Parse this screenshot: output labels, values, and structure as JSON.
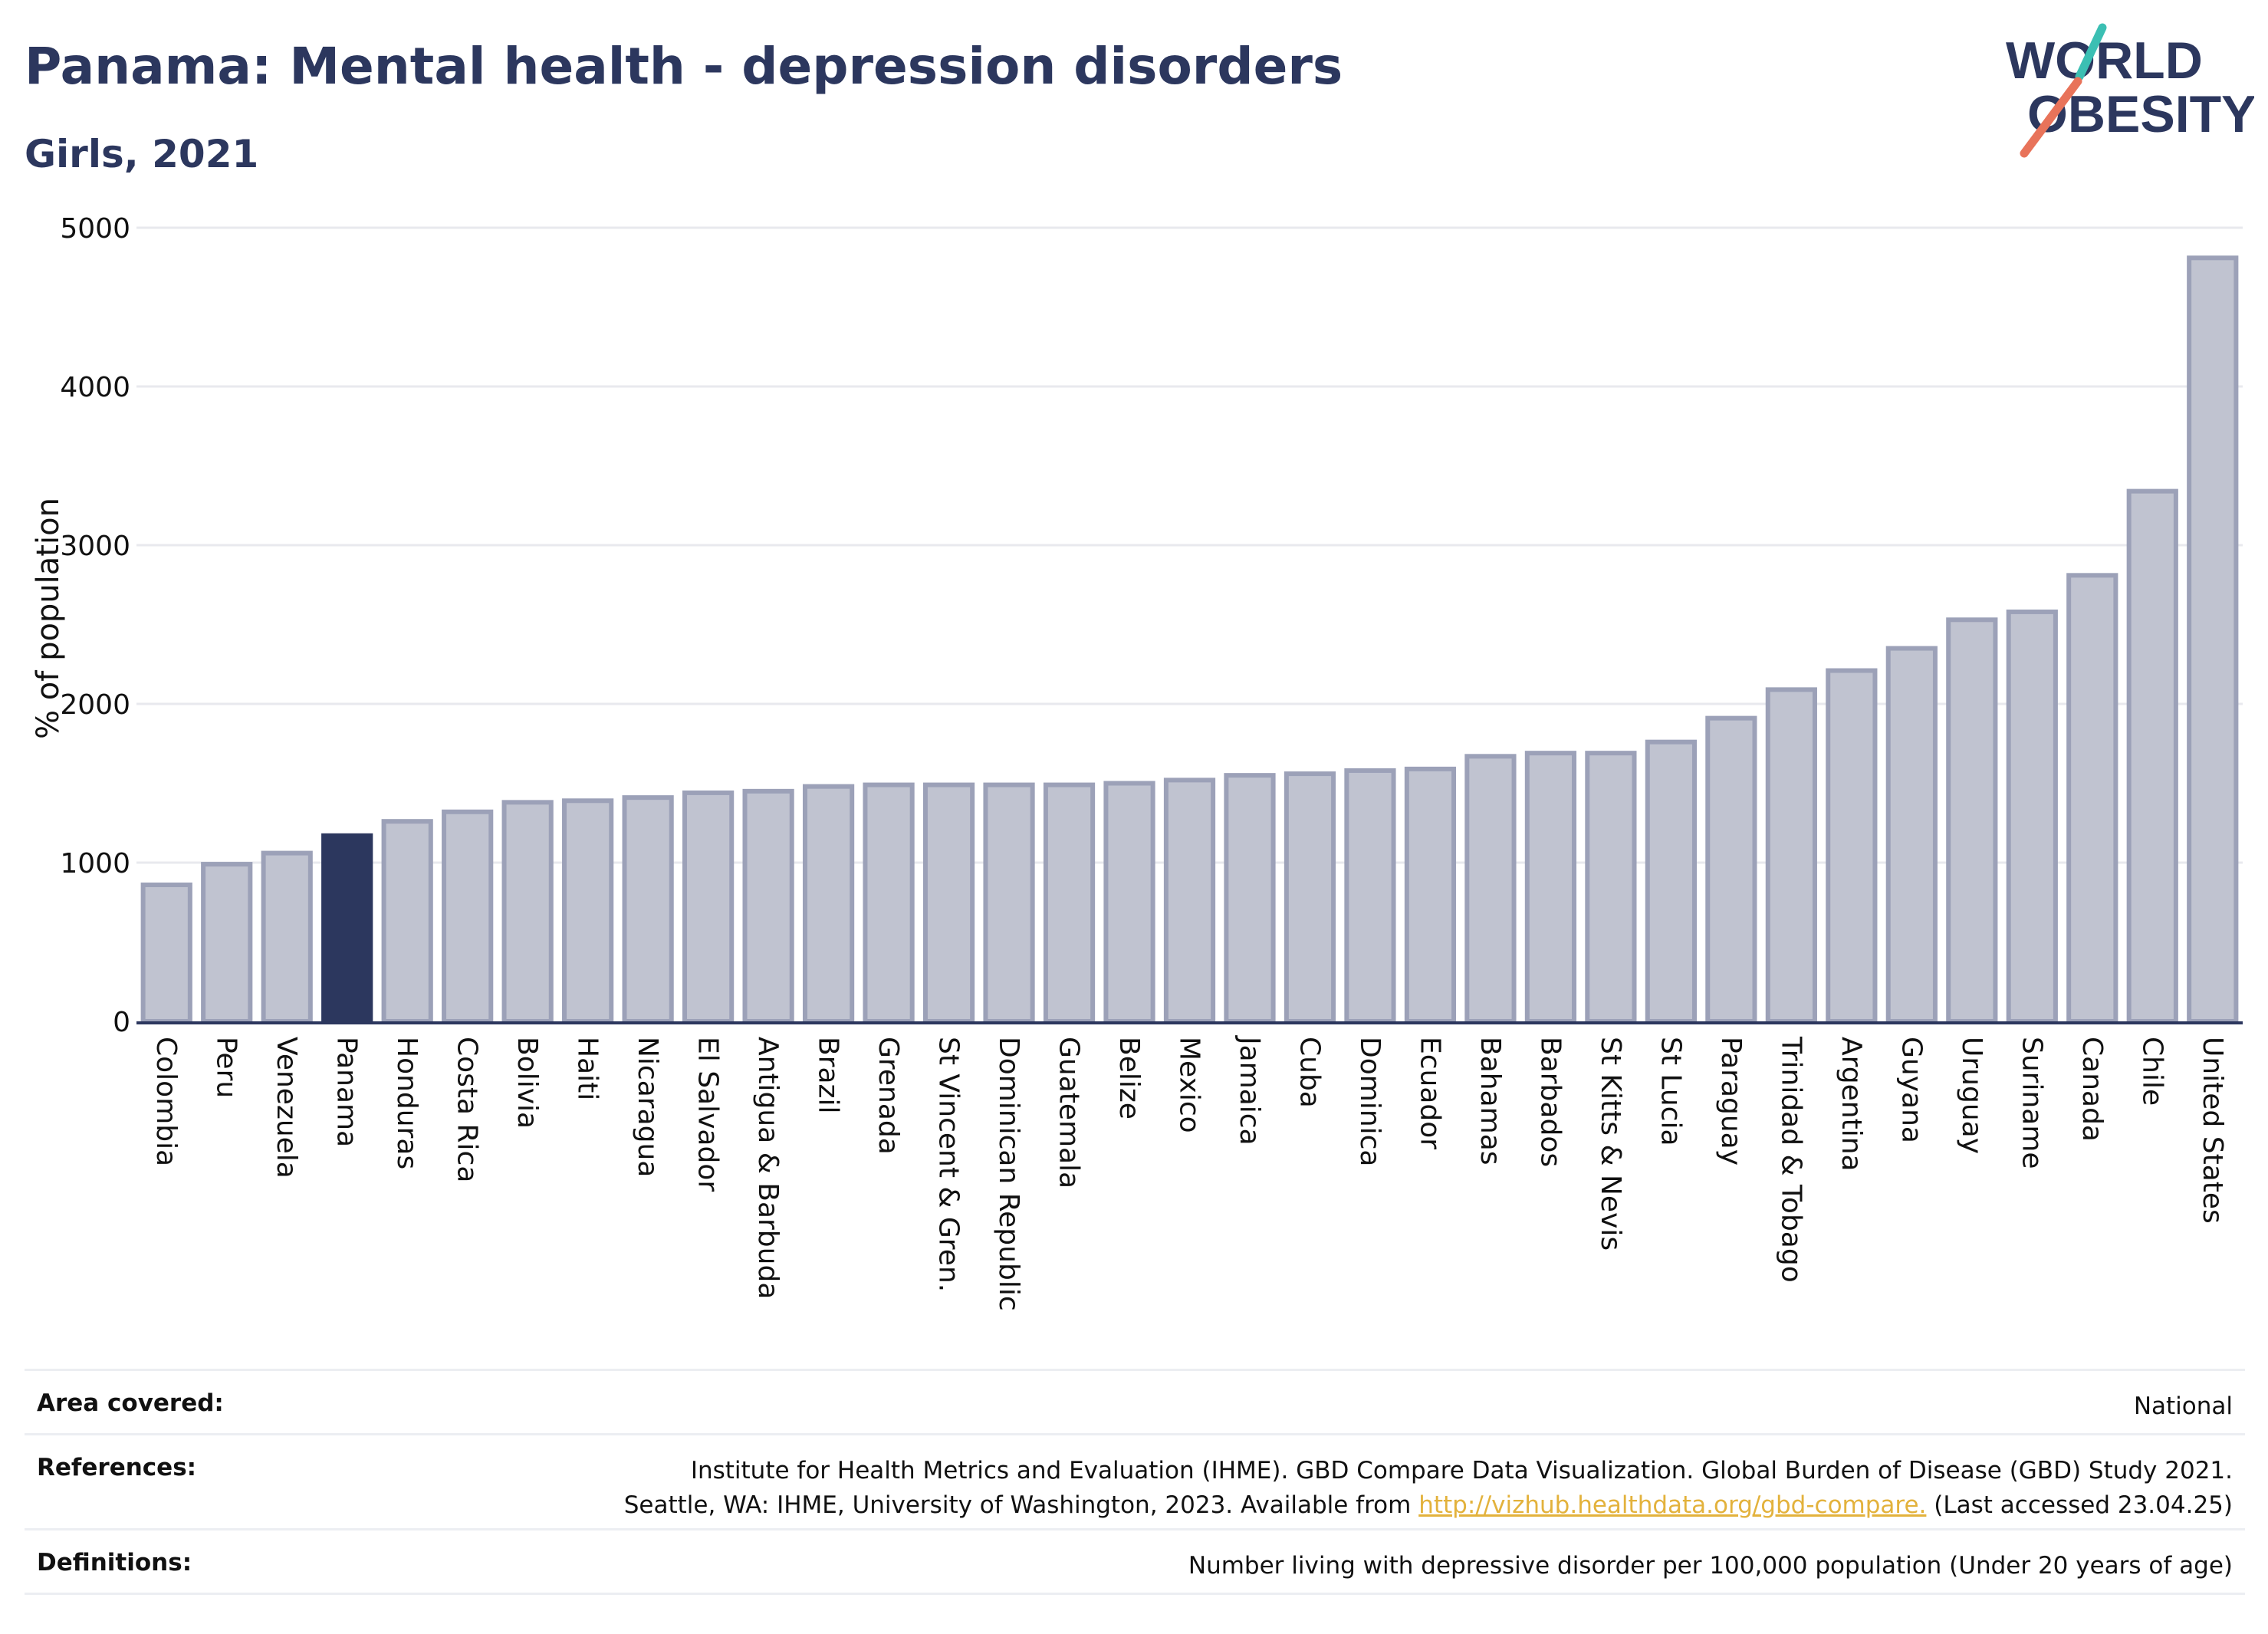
{
  "title": "Panama: Mental health - depression disorders",
  "subtitle": "Girls, 2021",
  "logo": {
    "line1": "WORLD",
    "line2": "OBESITY",
    "accent_teal": "#3bbfb3",
    "accent_coral": "#e8735a",
    "navy": "#2c375e"
  },
  "colors": {
    "bar": "#c0c3d0",
    "bar_outline": "#9ca1b8",
    "highlight": "#2c375e",
    "grid": "#e8e9ee",
    "axis": "#2c375e"
  },
  "chart_data": {
    "type": "bar",
    "title": "Panama: Mental health - depression disorders",
    "subtitle": "Girls, 2021",
    "ylabel": "% of population",
    "xlabel": "",
    "ylim": [
      0,
      5000
    ],
    "yticks": [
      0,
      1000,
      2000,
      3000,
      4000,
      5000
    ],
    "grid": true,
    "highlight": "Panama",
    "categories": [
      "Colombia",
      "Peru",
      "Venezuela",
      "Panama",
      "Honduras",
      "Costa Rica",
      "Bolivia",
      "Haiti",
      "Nicaragua",
      "El Salvador",
      "Antigua & Barbuda",
      "Brazil",
      "Grenada",
      "St Vincent & Gren.",
      "Dominican Republic",
      "Guatemala",
      "Belize",
      "Mexico",
      "Jamaica",
      "Cuba",
      "Dominica",
      "Ecuador",
      "Bahamas",
      "Barbados",
      "St Kitts & Nevis",
      "St Lucia",
      "Paraguay",
      "Trinidad & Tobago",
      "Argentina",
      "Guyana",
      "Uruguay",
      "Suriname",
      "Canada",
      "Chile",
      "United States"
    ],
    "values": [
      860,
      990,
      1060,
      1170,
      1260,
      1320,
      1380,
      1390,
      1410,
      1440,
      1450,
      1480,
      1490,
      1490,
      1490,
      1490,
      1500,
      1520,
      1550,
      1560,
      1580,
      1590,
      1670,
      1690,
      1690,
      1760,
      1910,
      2090,
      2210,
      2350,
      2530,
      2580,
      2810,
      3340,
      4810
    ]
  },
  "footer": {
    "area_label": "Area covered:",
    "area_value": "National",
    "references_label": "References:",
    "references_line1": "Institute for Health Metrics and Evaluation (IHME). GBD Compare Data Visualization. Global Burden of Disease (GBD) Study 2021.",
    "references_line2_pre": "Seattle, WA: IHME, University of Washington, 2023. Available from ",
    "references_link": "http://vizhub.healthdata.org/gbd-compare.",
    "references_line2_post": " (Last accessed 23.04.25)",
    "definitions_label": "Definitions:",
    "definitions_value": "Number living with depressive disorder per 100,000 population (Under 20 years of age)"
  }
}
